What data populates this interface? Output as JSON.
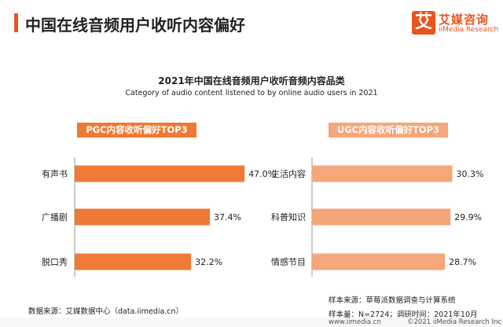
{
  "header": {
    "title": "中国在线音频用户收听内容偏好",
    "brand_mark": "艾",
    "brand_cn": "艾媒咨询",
    "brand_en": "iiMedia Research",
    "accent_color": "#e8551e"
  },
  "chart_title": "2021年中国在线音频用户收听音频内容品类",
  "chart_subtitle": "Category of audio content listened to by online audio users in 2021",
  "chart_data": [
    {
      "type": "bar",
      "orientation": "horizontal",
      "panel_label": "PGC内容收听偏好TOP3",
      "categories": [
        "有声书",
        "广播剧",
        "脱口秀"
      ],
      "values": [
        47.0,
        37.4,
        32.2
      ],
      "value_labels": [
        "47.0%",
        "37.4%",
        "32.2%"
      ],
      "bar_color": "#ee7a36",
      "xlim": [
        0,
        50
      ]
    },
    {
      "type": "bar",
      "orientation": "horizontal",
      "panel_label": "UGC内容收听偏好TOP3",
      "categories": [
        "生活内容",
        "科普知识",
        "情感节目"
      ],
      "values": [
        30.3,
        29.9,
        28.7
      ],
      "value_labels": [
        "30.3%",
        "29.9%",
        "28.7%"
      ],
      "bar_color": "#f5a67a",
      "xlim": [
        0,
        37
      ]
    }
  ],
  "footer": {
    "data_source": "数据来源：艾媒数据中心（data.iimedia.cn）",
    "sample_source": "样本来源：草莓派数据调查与计算系统",
    "sample_info": "样本量：N=2724；调研时间：2021年10月",
    "url": "www.iimedia.cn",
    "copyright": "©2021  iiMedia Research  Inc"
  }
}
